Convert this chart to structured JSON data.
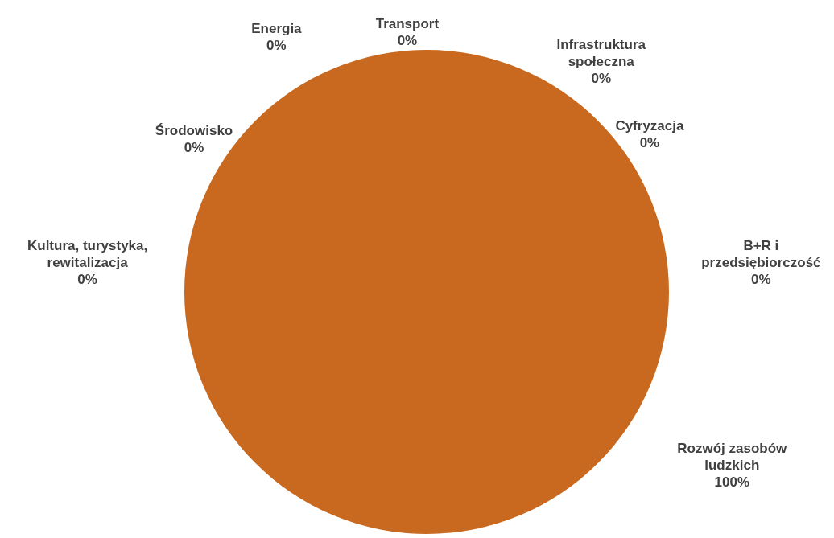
{
  "chart_data": {
    "type": "pie",
    "categories": [
      "Transport",
      "Infrastruktura społeczna",
      "Cyfryzacja",
      "B+R i przedsiębiorczość",
      "Rozwój zasobów ludzkich",
      "Kultura, turystyka, rewitalizacja",
      "Środowisko",
      "Energia"
    ],
    "values": [
      0,
      0,
      0,
      0,
      100,
      0,
      0,
      0
    ],
    "colors": [
      "#4f81bd",
      "#c0504d",
      "#9bbb59",
      "#8064a2",
      "#c8691f",
      "#4bacc6",
      "#f79646",
      "#2c4d75"
    ],
    "value_labels": [
      "0%",
      "0%",
      "0%",
      "0%",
      "100%",
      "0%",
      "0%",
      "0%"
    ],
    "legend": false
  }
}
